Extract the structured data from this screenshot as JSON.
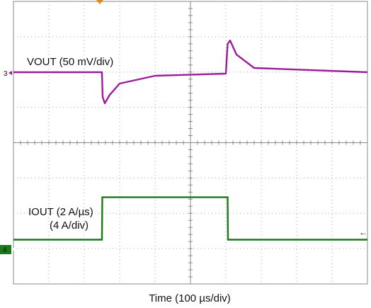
{
  "chart_data": {
    "type": "line",
    "xlabel": "Time (100 µs/div)",
    "grid": true,
    "x_divisions": 10,
    "y_divisions": 8,
    "time_per_div_us": 100,
    "series": [
      {
        "name": "VOUT (50 mV/div)",
        "channel_marker": "3",
        "color": "#9b1d9b",
        "volts_per_div": 0.05,
        "x": [
          0,
          250,
          252,
          258,
          272,
          300,
          400,
          600,
          605,
          612,
          630,
          680,
          1000
        ],
        "values": [
          0,
          0,
          -0.035,
          -0.044,
          -0.032,
          -0.016,
          -0.005,
          -0.002,
          0.04,
          0.045,
          0.025,
          0.006,
          0
        ]
      },
      {
        "name": "IOUT (2 A/µs)",
        "name_line2": "(4 A/div)",
        "channel_marker": "4",
        "color": "#1a7a1a",
        "amps_per_div": 4,
        "x": [
          0,
          250,
          251,
          605,
          606,
          1000
        ],
        "values": [
          0,
          0,
          4.8,
          4.8,
          0,
          0
        ]
      }
    ],
    "trigger_marker": "orange-triangle",
    "ref_arrow": "←"
  }
}
